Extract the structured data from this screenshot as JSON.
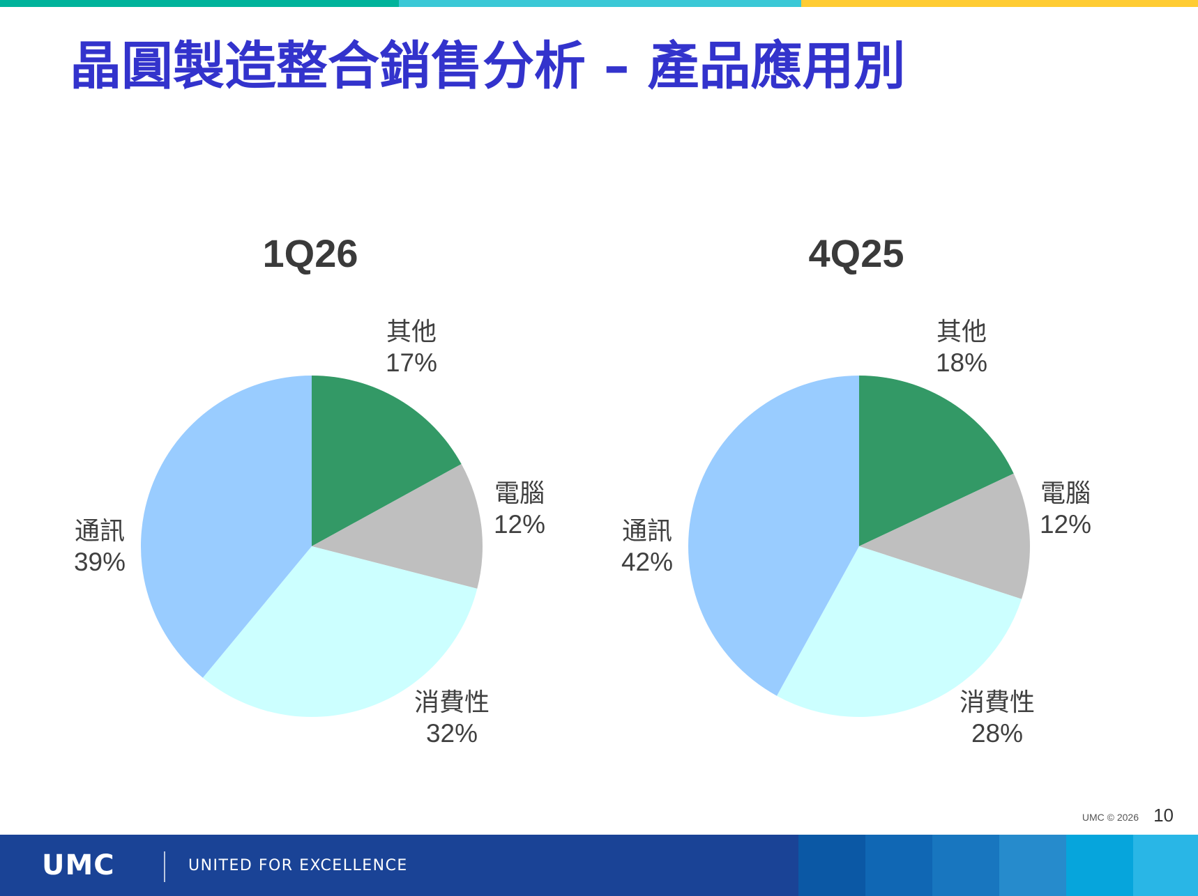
{
  "title": "晶圓製造整合銷售分析 – 產品應用別",
  "colors": {
    "title": "#3333cc",
    "stripe": [
      "#00b39b",
      "#3ac8d6",
      "#ffcc33"
    ],
    "footer_bg": "#1a4396",
    "footer_blocks": [
      "#0b58a5",
      "#1067b4",
      "#1876bf",
      "#268bcc",
      "#06a5dc",
      "#29b6e6"
    ],
    "slices": {
      "其他": "#339966",
      "電腦": "#bfbfbf",
      "消費性": "#ccffff",
      "通訊": "#99ccff"
    }
  },
  "chart_data": [
    {
      "type": "pie",
      "title": "1Q26",
      "labels": [
        "其他",
        "電腦",
        "消費性",
        "通訊"
      ],
      "values": [
        17,
        12,
        32,
        39
      ],
      "value_labels": [
        "17%",
        "12%",
        "32%",
        "39%"
      ]
    },
    {
      "type": "pie",
      "title": "4Q25",
      "labels": [
        "其他",
        "電腦",
        "消費性",
        "通訊"
      ],
      "values": [
        18,
        12,
        28,
        42
      ],
      "value_labels": [
        "18%",
        "12%",
        "28%",
        "42%"
      ]
    }
  ],
  "footer": {
    "copyright": "UMC © 2026",
    "page_number": "10",
    "logo": "UMC",
    "slogan": "UNITED FOR EXCELLENCE"
  }
}
